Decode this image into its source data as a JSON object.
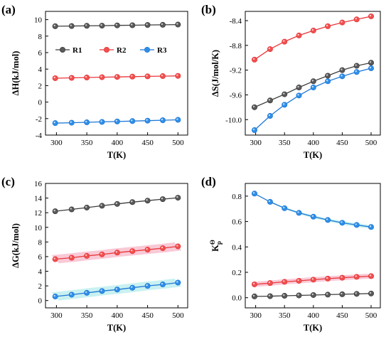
{
  "colors": {
    "R1": "#3d3d3d",
    "R2": "#e8373a",
    "R3": "#1f78d6",
    "R1_fill": "#5a5a5a",
    "R2_fill": "#f0504f",
    "R3_fill": "#2f8fe8",
    "R2_band": "#f7b7c8",
    "R3_band": "#b7ecec",
    "axis": "#000000"
  },
  "chart_data": [
    {
      "type": "line",
      "panel": "(a)",
      "xlabel": "T(K)",
      "ylabel": "ΔH(kJ/mol)",
      "x": [
        298,
        325,
        350,
        375,
        400,
        425,
        450,
        475,
        500
      ],
      "xticks": [
        300,
        350,
        400,
        450,
        500
      ],
      "xlim": [
        282,
        516
      ],
      "yticks": [
        -4,
        -2,
        0,
        2,
        4,
        6,
        8,
        10
      ],
      "ylim": [
        -4,
        11
      ],
      "grid": false,
      "legend": {
        "placement": "middle, horizontal",
        "entries": [
          "R1",
          "R2",
          "R3"
        ]
      },
      "series": [
        {
          "name": "R1",
          "values": [
            9.2,
            9.22,
            9.25,
            9.27,
            9.3,
            9.32,
            9.35,
            9.37,
            9.4
          ]
        },
        {
          "name": "R2",
          "values": [
            2.9,
            2.94,
            2.98,
            3.02,
            3.05,
            3.09,
            3.12,
            3.15,
            3.18
          ]
        },
        {
          "name": "R3",
          "values": [
            -2.55,
            -2.5,
            -2.45,
            -2.4,
            -2.35,
            -2.3,
            -2.25,
            -2.2,
            -2.15
          ]
        }
      ]
    },
    {
      "type": "line",
      "panel": "(b)",
      "xlabel": "T(K)",
      "ylabel": "ΔS(J/mol/K)",
      "x": [
        298,
        325,
        350,
        375,
        400,
        425,
        450,
        475,
        500
      ],
      "xticks": [
        300,
        350,
        400,
        450,
        500
      ],
      "xlim": [
        282,
        516
      ],
      "yticks": [
        -10.0,
        -9.6,
        -9.2,
        -8.8,
        -8.4
      ],
      "yticklabels": [
        "-10.0",
        "-9.6",
        "-9.2",
        "-8.8",
        "-8.4"
      ],
      "ylim": [
        -10.25,
        -8.25
      ],
      "grid": false,
      "series": [
        {
          "name": "R1",
          "values": [
            -9.8,
            -9.69,
            -9.59,
            -9.48,
            -9.38,
            -9.29,
            -9.2,
            -9.13,
            -9.08
          ]
        },
        {
          "name": "R2",
          "values": [
            -9.03,
            -8.86,
            -8.74,
            -8.64,
            -8.56,
            -8.49,
            -8.43,
            -8.38,
            -8.33
          ]
        },
        {
          "name": "R3",
          "values": [
            -10.17,
            -9.94,
            -9.76,
            -9.61,
            -9.48,
            -9.38,
            -9.3,
            -9.23,
            -9.17
          ]
        }
      ]
    },
    {
      "type": "line",
      "panel": "(c)",
      "xlabel": "T(K)",
      "ylabel": "ΔG(kJ/mol)",
      "x": [
        298,
        325,
        350,
        375,
        400,
        425,
        450,
        475,
        500
      ],
      "xticks": [
        300,
        350,
        400,
        450,
        500
      ],
      "xlim": [
        282,
        516
      ],
      "yticks": [
        0,
        2,
        4,
        6,
        8,
        10,
        12,
        14,
        16
      ],
      "ylim": [
        -1,
        16
      ],
      "grid": false,
      "series": [
        {
          "name": "R1",
          "values": [
            12.2,
            12.45,
            12.7,
            12.95,
            13.2,
            13.45,
            13.65,
            13.85,
            14.05
          ]
        },
        {
          "name": "R2",
          "values": [
            5.65,
            5.85,
            6.1,
            6.3,
            6.55,
            6.75,
            6.95,
            7.15,
            7.4
          ]
        },
        {
          "name": "R3",
          "values": [
            0.55,
            0.8,
            1.05,
            1.3,
            1.5,
            1.75,
            2.0,
            2.2,
            2.45
          ]
        }
      ]
    },
    {
      "type": "line",
      "panel": "(d)",
      "xlabel": "T(K)",
      "ylabel": "K",
      "ylabel_sup": "Θ",
      "ylabel_sub": "p",
      "x": [
        298,
        325,
        350,
        375,
        400,
        425,
        450,
        475,
        500
      ],
      "xticks": [
        300,
        350,
        400,
        450,
        500
      ],
      "xlim": [
        282,
        516
      ],
      "yticks": [
        0.0,
        0.2,
        0.4,
        0.6,
        0.8
      ],
      "yticklabels": [
        "0.0",
        "0.2",
        "0.4",
        "0.6",
        "0.8"
      ],
      "ylim": [
        -0.08,
        0.9
      ],
      "grid": false,
      "series": [
        {
          "name": "R1",
          "values": [
            0.01,
            0.012,
            0.015,
            0.018,
            0.021,
            0.024,
            0.027,
            0.03,
            0.033
          ]
        },
        {
          "name": "R2",
          "values": [
            0.105,
            0.115,
            0.125,
            0.133,
            0.142,
            0.15,
            0.157,
            0.164,
            0.17
          ]
        },
        {
          "name": "R3",
          "values": [
            0.82,
            0.755,
            0.705,
            0.668,
            0.638,
            0.612,
            0.59,
            0.573,
            0.557
          ]
        }
      ]
    }
  ]
}
